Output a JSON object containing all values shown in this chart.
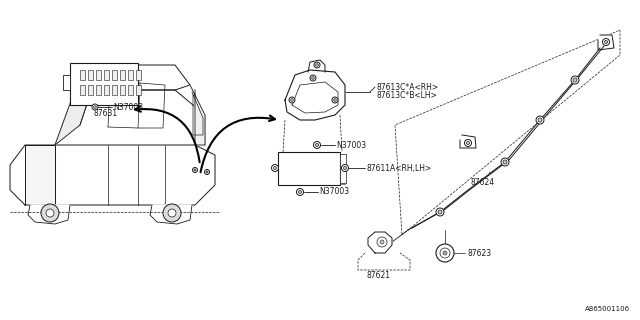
{
  "background_color": "#ffffff",
  "line_color": "#1a1a1a",
  "diagram_ref": "A865001106",
  "fig_width": 6.4,
  "fig_height": 3.2,
  "dpi": 100,
  "labels": {
    "87613CA": "87613C*A<RH>",
    "87613CB": "87613C*B<LH>",
    "N37003": "N37003",
    "87611A": "87611A<RH,LH>",
    "87624": "87624",
    "87631": "87631",
    "87621": "87621",
    "87623": "87623"
  }
}
